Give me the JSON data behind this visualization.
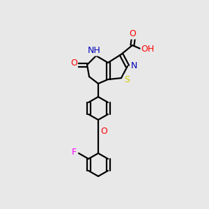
{
  "background_color": "#e8e8e8",
  "bond_color": "#000000",
  "atom_colors": {
    "O": "#ff0000",
    "N": "#0000bb",
    "S": "#cccc00",
    "F": "#ff00ff",
    "H": "#555555",
    "C": "#000000"
  },
  "figsize": [
    3.0,
    3.0
  ],
  "dpi": 100,
  "lw": 1.6,
  "dbl_off": 2.5,
  "fs": 9.0
}
